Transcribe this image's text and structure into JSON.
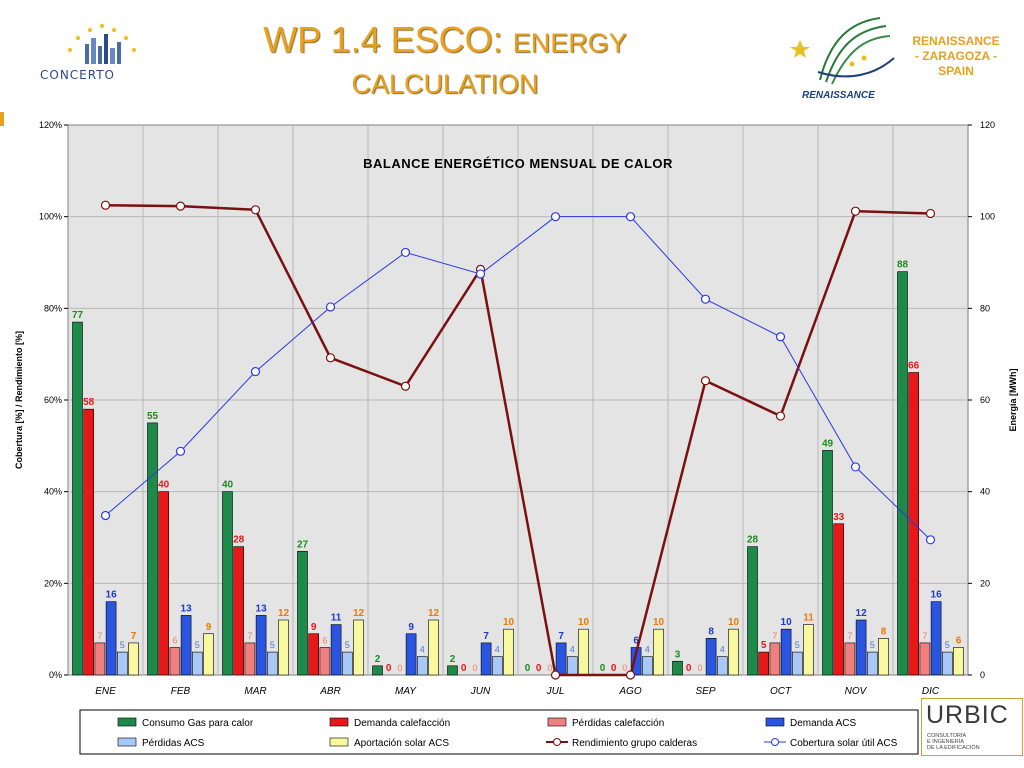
{
  "header": {
    "title_line1_big": "WP 1.4 ESCO: ",
    "title_line1_small": "ENERGY",
    "title_line2": "CALCULATION",
    "concerto_logo_text": "CONCERTO",
    "renaissance_logo_text": "RENAISSANCE",
    "place_line1": "RENAISSANCE",
    "place_line2": "- ZARAGOZA -",
    "place_line3": "SPAIN",
    "accent_color": "#e8a020"
  },
  "urbic": {
    "name": "URBIC",
    "sub1": "CONSULTORÍA",
    "sub2": "E INGENIERÍA",
    "sub3": "DE LA EDIFICACIÓN"
  },
  "chart_data": {
    "type": "bar",
    "title": "BALANCE ENERGÉTICO MENSUAL DE CALOR",
    "ylabel_left": "Cobertura [%] / Rendimiento [%]",
    "ylabel_right": "Energía [MWh]",
    "y_left_ticks": [
      "0%",
      "20%",
      "40%",
      "60%",
      "80%",
      "100%",
      "120%"
    ],
    "y_right_ticks": [
      "0",
      "20",
      "40",
      "60",
      "80",
      "100",
      "120"
    ],
    "ylim_right": [
      0,
      120
    ],
    "ylim_left": [
      0,
      120
    ],
    "grid": true,
    "legend_position": "bottom",
    "categories": [
      "ENE",
      "FEB",
      "MAR",
      "ABR",
      "MAY",
      "JUN",
      "JUL",
      "AGO",
      "SEP",
      "OCT",
      "NOV",
      "DIC"
    ],
    "bar_series": [
      {
        "name": "Consumo Gas para calor",
        "color": "#1e8a4a",
        "label_color": "#1e8a1e",
        "values": [
          77,
          55,
          40,
          27,
          2,
          2,
          0,
          0,
          3,
          28,
          49,
          88
        ],
        "labels": [
          "77",
          "55",
          "40",
          "27",
          "2",
          "2",
          "0",
          "0",
          "3",
          "28",
          "49",
          "88"
        ]
      },
      {
        "name": "Demanda calefacción",
        "color": "#e81818",
        "label_color": "#e81818",
        "values": [
          58,
          40,
          28,
          9,
          0,
          0,
          0,
          0,
          0,
          5,
          33,
          66
        ],
        "labels": [
          "58",
          "40",
          "28",
          "9",
          "0",
          "0",
          "0",
          "0",
          "0",
          "5",
          "33",
          "66"
        ]
      },
      {
        "name": "Pérdidas calefacción",
        "color": "#f08080",
        "label_color": "#f08060",
        "values": [
          7,
          6,
          7,
          6,
          0,
          0,
          0,
          0,
          0,
          7,
          7,
          7
        ],
        "labels": [
          "7",
          "6",
          "7",
          "6",
          "0",
          "0",
          "0",
          "0",
          "0",
          "7",
          "7",
          "7"
        ]
      },
      {
        "name": "Demanda ACS",
        "color": "#2a55e0",
        "label_color": "#1a3ad0",
        "values": [
          16,
          13,
          13,
          11,
          9,
          7,
          7,
          6,
          8,
          10,
          12,
          16
        ],
        "labels": [
          "16",
          "13",
          "13",
          "11",
          "9",
          "7",
          "7",
          "6",
          "8",
          "10",
          "12",
          "16"
        ]
      },
      {
        "name": "Pérdidas ACS",
        "color": "#a8c8f8",
        "label_color": "#4a7ad8",
        "values": [
          5,
          5,
          5,
          5,
          4,
          4,
          4,
          4,
          4,
          5,
          5,
          5
        ],
        "labels": [
          "5",
          "5",
          "5",
          "5",
          "4",
          "4",
          "4",
          "4",
          "4",
          "5",
          "5",
          "5"
        ]
      },
      {
        "name": "Aportación solar ACS",
        "color": "#f8f8a0",
        "label_color": "#f07800",
        "values": [
          7,
          9,
          12,
          12,
          12,
          10,
          10,
          10,
          10,
          11,
          8,
          6
        ],
        "labels": [
          "7",
          "9",
          "12",
          "12",
          "12",
          "10",
          "10",
          "10",
          "10",
          "11",
          "8",
          "6"
        ]
      }
    ],
    "line_series": [
      {
        "name": "Rendimiento grupo calderas",
        "axis": "left",
        "color": "#7a1010",
        "values": [
          102.5,
          102.3,
          101.5,
          69.2,
          63,
          88.5,
          0,
          0,
          64.2,
          56.5,
          101.2,
          100.7
        ]
      },
      {
        "name": "Cobertura solar útil ACS",
        "axis": "left",
        "color": "#2a3ae0",
        "values": [
          34.8,
          48.8,
          66.2,
          80.3,
          92.2,
          87.5,
          100,
          100,
          82,
          73.8,
          45.4,
          29.5
        ]
      }
    ]
  }
}
